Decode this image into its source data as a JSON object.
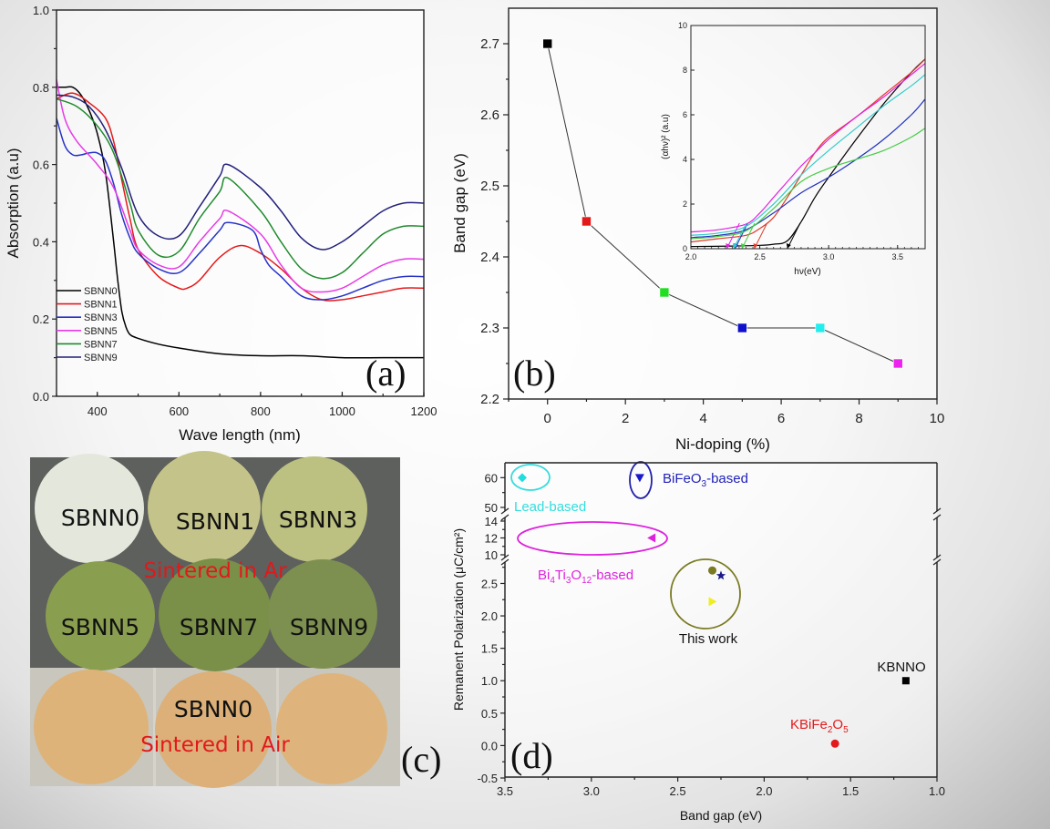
{
  "figure": {
    "panel_labels": [
      "(a)",
      "(b)",
      "(c)",
      "(d)"
    ]
  },
  "chart_data": [
    {
      "id": "a",
      "type": "line",
      "title": "",
      "xlabel": "Wave length (nm)",
      "ylabel": "Absorption (a.u)",
      "xlim": [
        300,
        1200
      ],
      "ylim": [
        0.0,
        1.0
      ],
      "xticks": [
        "400",
        "600",
        "800",
        "1000",
        "1200"
      ],
      "xtick_values": [
        400,
        600,
        800,
        1000,
        1200
      ],
      "yticks": [
        "0.0",
        "0.2",
        "0.4",
        "0.6",
        "0.8",
        "1.0"
      ],
      "ytick_values": [
        0.0,
        0.2,
        0.4,
        0.6,
        0.8,
        1.0
      ],
      "legend_position": "lower-left",
      "series": [
        {
          "name": "SBNN0",
          "color": "#000000",
          "x": [
            300,
            320,
            340,
            360,
            380,
            400,
            420,
            440,
            450,
            460,
            470,
            480,
            500,
            550,
            600,
            700,
            800,
            900,
            1000,
            1100,
            1200
          ],
          "y": [
            0.8,
            0.8,
            0.8,
            0.78,
            0.74,
            0.68,
            0.58,
            0.4,
            0.3,
            0.22,
            0.18,
            0.16,
            0.15,
            0.135,
            0.125,
            0.11,
            0.105,
            0.105,
            0.1,
            0.1,
            0.1
          ]
        },
        {
          "name": "SBNN1",
          "color": "#e31a1c",
          "x": [
            300,
            340,
            380,
            420,
            440,
            460,
            480,
            500,
            550,
            600,
            620,
            650,
            700,
            750,
            800,
            850,
            900,
            950,
            1000,
            1050,
            1100,
            1150,
            1200
          ],
          "y": [
            0.77,
            0.785,
            0.76,
            0.72,
            0.66,
            0.56,
            0.46,
            0.38,
            0.31,
            0.28,
            0.28,
            0.3,
            0.36,
            0.39,
            0.37,
            0.33,
            0.28,
            0.25,
            0.25,
            0.26,
            0.27,
            0.28,
            0.28
          ]
        },
        {
          "name": "SBNN3",
          "color": "#2632c8",
          "x": [
            300,
            320,
            340,
            360,
            380,
            400,
            420,
            440,
            460,
            480,
            500,
            550,
            600,
            650,
            700,
            720,
            780,
            800,
            820,
            850,
            900,
            950,
            1000,
            1050,
            1100,
            1150,
            1200
          ],
          "y": [
            0.72,
            0.65,
            0.625,
            0.625,
            0.63,
            0.63,
            0.61,
            0.55,
            0.47,
            0.41,
            0.37,
            0.33,
            0.32,
            0.37,
            0.43,
            0.45,
            0.43,
            0.38,
            0.34,
            0.31,
            0.26,
            0.25,
            0.26,
            0.28,
            0.3,
            0.31,
            0.31
          ]
        },
        {
          "name": "SBNN5",
          "color": "#e63be6",
          "x": [
            300,
            320,
            350,
            400,
            440,
            480,
            500,
            550,
            600,
            650,
            700,
            720,
            800,
            850,
            900,
            950,
            1000,
            1050,
            1100,
            1150,
            1200
          ],
          "y": [
            0.82,
            0.72,
            0.66,
            0.6,
            0.54,
            0.43,
            0.38,
            0.34,
            0.335,
            0.4,
            0.46,
            0.48,
            0.42,
            0.34,
            0.28,
            0.27,
            0.28,
            0.31,
            0.34,
            0.355,
            0.355
          ]
        },
        {
          "name": "SBNN7",
          "color": "#1f8a2c",
          "x": [
            300,
            350,
            400,
            440,
            480,
            500,
            550,
            600,
            650,
            700,
            720,
            800,
            850,
            900,
            950,
            1000,
            1050,
            1100,
            1150,
            1200
          ],
          "y": [
            0.77,
            0.75,
            0.7,
            0.63,
            0.5,
            0.43,
            0.365,
            0.375,
            0.46,
            0.53,
            0.565,
            0.48,
            0.4,
            0.33,
            0.305,
            0.32,
            0.37,
            0.42,
            0.44,
            0.44
          ]
        },
        {
          "name": "SBNN9",
          "color": "#22207a",
          "x": [
            300,
            340,
            380,
            420,
            460,
            500,
            550,
            600,
            650,
            700,
            720,
            800,
            850,
            900,
            950,
            1000,
            1050,
            1100,
            1150,
            1200
          ],
          "y": [
            0.78,
            0.775,
            0.75,
            0.69,
            0.59,
            0.47,
            0.415,
            0.415,
            0.49,
            0.57,
            0.6,
            0.54,
            0.48,
            0.41,
            0.38,
            0.4,
            0.44,
            0.48,
            0.5,
            0.5
          ]
        }
      ]
    },
    {
      "id": "b",
      "type": "line",
      "title": "",
      "xlabel": "Ni-doping (%)",
      "ylabel": "Band gap (eV)",
      "xlim": [
        -1,
        10
      ],
      "ylim": [
        2.2,
        2.75
      ],
      "xticks": [
        "0",
        "2",
        "4",
        "6",
        "8",
        "10"
      ],
      "xtick_values": [
        0,
        2,
        4,
        6,
        8,
        10
      ],
      "yticks": [
        "2.2",
        "2.3",
        "2.4",
        "2.5",
        "2.6",
        "2.7"
      ],
      "ytick_values": [
        2.2,
        2.3,
        2.4,
        2.5,
        2.6,
        2.7
      ],
      "series": [
        {
          "name": "Band gap",
          "line_color": "#333333",
          "x": [
            0,
            1,
            3,
            5,
            7,
            9
          ],
          "y": [
            2.7,
            2.45,
            2.35,
            2.3,
            2.3,
            2.25
          ],
          "marker_colors": [
            "#000000",
            "#e31a1c",
            "#22dd22",
            "#1010cc",
            "#22eeee",
            "#ee22ee"
          ]
        }
      ],
      "inset": {
        "type": "line",
        "xlabel": "hν(eV)",
        "ylabel": "(αhν)² (a.u)",
        "xlim": [
          2.0,
          3.7
        ],
        "ylim": [
          0,
          10
        ],
        "xticks": [
          "2.0",
          "2.5",
          "3.0",
          "3.5"
        ],
        "xtick_values": [
          2.0,
          2.5,
          3.0,
          3.5
        ],
        "yticks": [
          "0",
          "2",
          "4",
          "6",
          "8",
          "10"
        ],
        "ytick_values": [
          0,
          2,
          4,
          6,
          8,
          10
        ],
        "series": [
          {
            "name": "SBNN0",
            "color": "#000000",
            "x": [
              2.0,
              2.3,
              2.5,
              2.6,
              2.7,
              2.8,
              2.9,
              3.0,
              3.2,
              3.4,
              3.6,
              3.7
            ],
            "y": [
              0.1,
              0.12,
              0.15,
              0.2,
              0.35,
              1.2,
              2.3,
              3.2,
              4.9,
              6.5,
              7.9,
              8.5
            ],
            "tangent_x0": 2.7
          },
          {
            "name": "SBNN1",
            "color": "#e03a2a",
            "x": [
              2.0,
              2.2,
              2.4,
              2.5,
              2.6,
              2.7,
              2.8,
              2.9,
              3.0,
              3.2,
              3.4,
              3.6,
              3.7
            ],
            "y": [
              0.3,
              0.45,
              0.6,
              0.9,
              1.4,
              2.3,
              3.3,
              4.3,
              5.0,
              5.9,
              6.9,
              7.9,
              8.5
            ],
            "tangent_x0": 2.46
          },
          {
            "name": "SBNN3",
            "color": "#2030c0",
            "x": [
              2.0,
              2.2,
              2.4,
              2.6,
              2.8,
              3.0,
              3.2,
              3.4,
              3.6,
              3.7
            ],
            "y": [
              0.5,
              0.6,
              0.85,
              1.6,
              2.5,
              3.2,
              4.0,
              4.9,
              6.0,
              6.7
            ],
            "tangent_x0": 2.32
          },
          {
            "name": "SBNN5",
            "color": "#e022e0",
            "x": [
              2.0,
              2.2,
              2.4,
              2.5,
              2.6,
              2.7,
              2.8,
              2.9,
              3.0,
              3.2,
              3.4,
              3.6,
              3.7
            ],
            "y": [
              0.75,
              0.85,
              1.1,
              1.6,
              2.3,
              3.0,
              3.7,
              4.3,
              4.9,
              5.9,
              6.8,
              7.8,
              8.3
            ],
            "tangent_x0": 2.26
          },
          {
            "name": "SBNN7",
            "color": "#44cc44",
            "x": [
              2.0,
              2.2,
              2.4,
              2.6,
              2.8,
              3.0,
              3.2,
              3.4,
              3.6,
              3.7
            ],
            "y": [
              0.45,
              0.55,
              0.8,
              1.8,
              3.0,
              3.6,
              4.0,
              4.4,
              5.0,
              5.4
            ],
            "tangent_x0": 2.37
          },
          {
            "name": "SBNN9",
            "color": "#33cccc",
            "x": [
              2.0,
              2.2,
              2.4,
              2.6,
              2.8,
              3.0,
              3.2,
              3.4,
              3.6,
              3.7
            ],
            "y": [
              0.6,
              0.7,
              1.0,
              2.0,
              3.3,
              4.4,
              5.4,
              6.4,
              7.3,
              7.8
            ],
            "tangent_x0": 2.31
          }
        ]
      }
    },
    {
      "id": "d",
      "type": "scatter",
      "title": "",
      "xlabel": "Band gap (eV)",
      "ylabel": "Remanent Polarization (μC/cm²)",
      "xlim": [
        3.5,
        1.0
      ],
      "x_reversed": true,
      "ylim": [
        -0.5,
        65
      ],
      "y_axis_breaks": [
        [
          2.9,
          10
        ],
        [
          14,
          50
        ]
      ],
      "xticks": [
        "3.5",
        "3.0",
        "2.5",
        "2.0",
        "1.5",
        "1.0"
      ],
      "xtick_values": [
        3.5,
        3.0,
        2.5,
        2.0,
        1.5,
        1.0
      ],
      "yticks": [
        "-0.5",
        "0.0",
        "0.5",
        "1.0",
        "1.5",
        "2.0",
        "2.5",
        "10",
        "12",
        "14",
        "50",
        "60"
      ],
      "ytick_values": [
        -0.5,
        0.0,
        0.5,
        1.0,
        1.5,
        2.0,
        2.5,
        10,
        12,
        14,
        50,
        60
      ],
      "points": [
        {
          "group": "Lead-based",
          "x": 3.4,
          "y": 60,
          "marker": "diamond",
          "color": "#22dddd"
        },
        {
          "group": "BiFeO3-based",
          "x": 2.72,
          "y": 60,
          "marker": "triangle-down",
          "color": "#1a1acc"
        },
        {
          "group": "Bi4Ti3O12-based",
          "x": 2.65,
          "y": 12,
          "marker": "triangle-left",
          "color": "#dd22dd"
        },
        {
          "group": "This work",
          "x": 2.3,
          "y": 2.7,
          "marker": "hexagon",
          "color": "#7a7a22"
        },
        {
          "group": "This work",
          "x": 2.25,
          "y": 2.62,
          "marker": "star",
          "color": "#1a1a88"
        },
        {
          "group": "This work",
          "x": 2.3,
          "y": 2.22,
          "marker": "triangle-right",
          "color": "#eeee22"
        },
        {
          "group": "KBNNO",
          "x": 1.18,
          "y": 1.0,
          "marker": "square",
          "color": "#000000"
        },
        {
          "group": "KBiFe2O5",
          "x": 1.59,
          "y": 0.03,
          "marker": "circle",
          "color": "#e31a1c"
        }
      ],
      "annotations": [
        {
          "text": "Lead-based",
          "color": "#33dddd"
        },
        {
          "text": "BiFeO",
          "sub": "3",
          "after": "-based",
          "color": "#2222bb"
        },
        {
          "text": "Bi",
          "parts": [
            [
              "Bi",
              ""
            ],
            [
              "4",
              "sub"
            ],
            [
              "Ti",
              ""
            ],
            [
              "3",
              "sub"
            ],
            [
              "O",
              ""
            ],
            [
              "12",
              "sub"
            ],
            [
              "-based",
              ""
            ]
          ],
          "color": "#dd22dd"
        },
        {
          "text": "This work",
          "color": "#111111"
        },
        {
          "text": "KBNNO",
          "color": "#111111"
        },
        {
          "text": "KBiFe2O5",
          "color": "#e31a1c"
        }
      ]
    }
  ],
  "photo_panel": {
    "top_section_caption": "Sintered in Ar",
    "bottom_section_caption": "Sintered in Air",
    "top_pellets": [
      {
        "label": "SBNN0",
        "color": "#e4e8dc"
      },
      {
        "label": "SBNN1",
        "color": "#c4c48a"
      },
      {
        "label": "SBNN3",
        "color": "#bcc080"
      },
      {
        "label": "SBNN5",
        "color": "#8a9e50"
      },
      {
        "label": "SBNN7",
        "color": "#7a8f48"
      },
      {
        "label": "SBNN9",
        "color": "#7d9050"
      }
    ],
    "bottom_pellets": [
      {
        "label": "",
        "color": "#ddb37a"
      },
      {
        "label": "SBNN0",
        "color": "#dcb078"
      },
      {
        "label": "",
        "color": "#deb47c"
      }
    ]
  }
}
